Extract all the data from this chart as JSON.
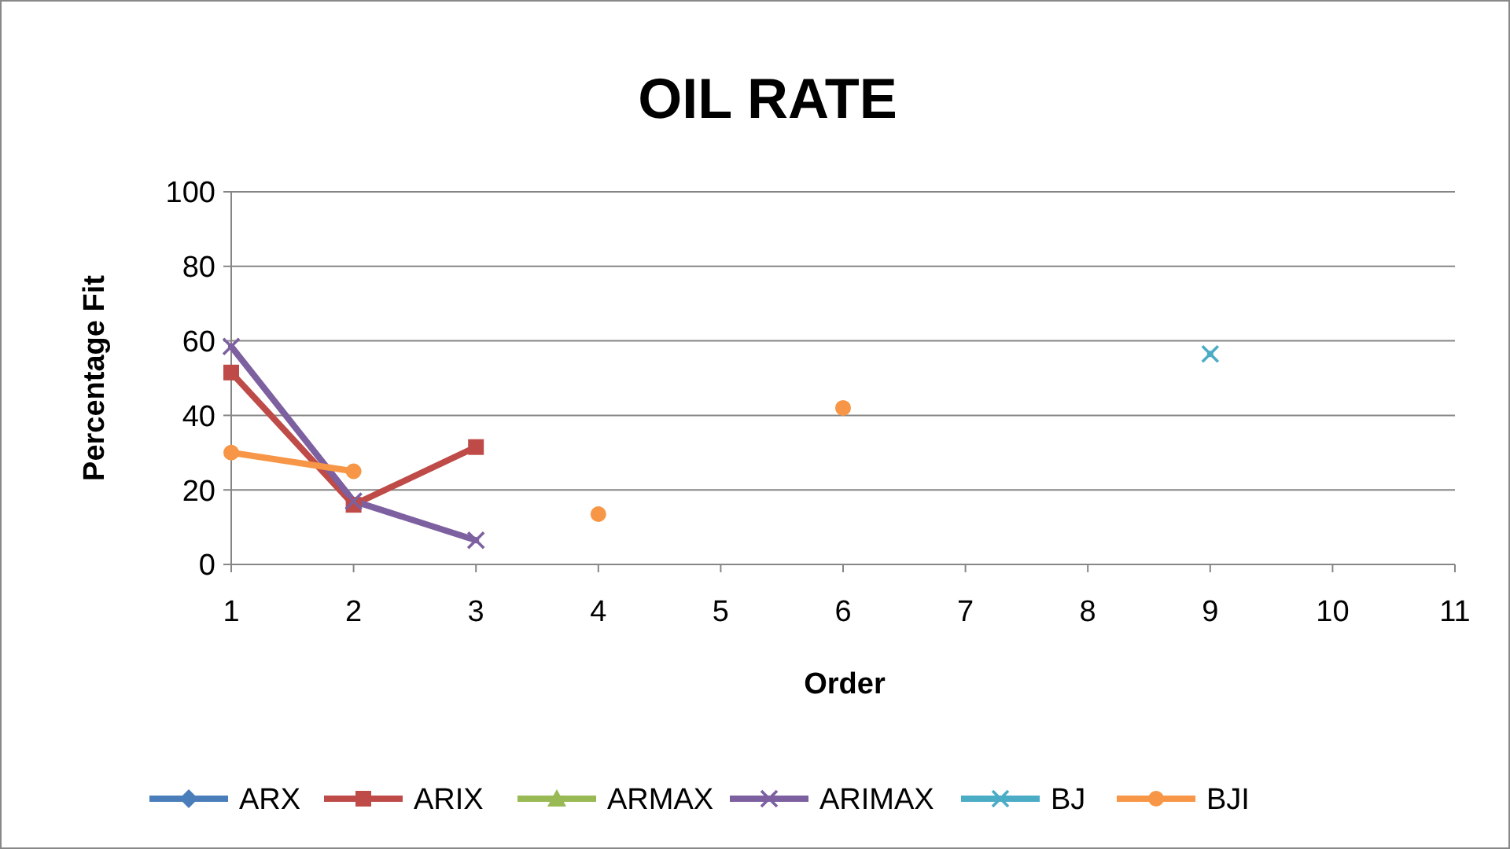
{
  "chart_data": {
    "type": "line",
    "title": "OIL RATE",
    "xlabel": "Order",
    "ylabel": "Percentage Fit",
    "x": [
      1,
      2,
      3,
      4,
      5,
      6,
      7,
      8,
      9
    ],
    "series": [
      {
        "name": "ARX",
        "color": "#4a7ebb",
        "marker": "diamond",
        "values": [
          null,
          null,
          null,
          null,
          null,
          null,
          null,
          null,
          null
        ]
      },
      {
        "name": "ARIX",
        "color": "#be4b48",
        "marker": "square",
        "values": [
          51.5,
          16,
          31.5,
          null,
          null,
          null,
          null,
          null,
          null
        ]
      },
      {
        "name": "ARMAX",
        "color": "#98b954",
        "marker": "triangle",
        "values": [
          null,
          null,
          null,
          null,
          null,
          null,
          null,
          null,
          null
        ]
      },
      {
        "name": "ARIMAX",
        "color": "#7d60a0",
        "marker": "cross",
        "values": [
          58.5,
          17,
          6.5,
          null,
          null,
          null,
          null,
          null,
          null
        ]
      },
      {
        "name": "BJ",
        "color": "#4bacc6",
        "marker": "cross",
        "values": [
          null,
          null,
          null,
          null,
          null,
          null,
          null,
          null,
          56.5
        ]
      },
      {
        "name": "BJI",
        "color": "#f79646",
        "marker": "circle",
        "values": [
          30,
          25,
          null,
          13.5,
          null,
          42,
          null,
          null,
          null
        ]
      }
    ],
    "xlim": [
      1,
      11
    ],
    "xticks": [
      1,
      2,
      3,
      4,
      5,
      6,
      7,
      8,
      9,
      10,
      11
    ],
    "ylim": [
      0,
      100
    ],
    "yticks": [
      0,
      20,
      40,
      60,
      80,
      100
    ],
    "grid": "y",
    "legend": "bottom"
  }
}
